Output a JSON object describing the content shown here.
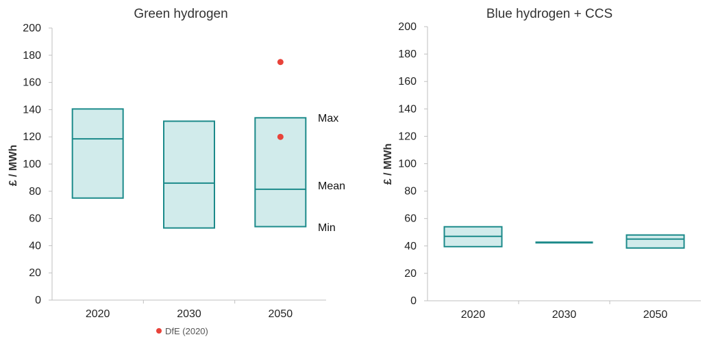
{
  "colors": {
    "box_fill": "#d1ebeb",
    "box_stroke": "#1b8a8a",
    "marker": "#e8433a",
    "axis": "#bfbfbf",
    "text": "#222222"
  },
  "chart_data": [
    {
      "type": "box",
      "title": "Green hydrogen",
      "xlabel": "",
      "ylabel": "£ / MWh",
      "ylim": [
        0,
        200
      ],
      "yticks": [
        "0",
        "20",
        "40",
        "60",
        "80",
        "100",
        "120",
        "140",
        "160",
        "180",
        "200"
      ],
      "categories": [
        "2020",
        "2030",
        "2050"
      ],
      "series": [
        {
          "stat": "max",
          "values": [
            140.5,
            131.5,
            134
          ]
        },
        {
          "stat": "mean",
          "values": [
            118.5,
            86,
            81.5
          ]
        },
        {
          "stat": "min",
          "values": [
            75,
            53,
            54
          ]
        }
      ],
      "points": [
        {
          "category": "2050",
          "value": 175
        },
        {
          "category": "2050",
          "value": 120
        }
      ],
      "annotations": [
        "Max",
        "Mean",
        "Min"
      ],
      "legend": {
        "items": [
          {
            "name": "DfE (2020)",
            "marker": "circle"
          }
        ],
        "position": "bottom"
      }
    },
    {
      "type": "box",
      "title": "Blue hydrogen + CCS",
      "xlabel": "",
      "ylabel": "£ / MWh",
      "ylim": [
        0,
        200
      ],
      "yticks": [
        "0",
        "20",
        "40",
        "60",
        "80",
        "100",
        "120",
        "140",
        "160",
        "180",
        "200"
      ],
      "categories": [
        "2020",
        "2030",
        "2050"
      ],
      "series": [
        {
          "stat": "max",
          "values": [
            54,
            42.5,
            48
          ]
        },
        {
          "stat": "mean",
          "values": [
            47,
            42.5,
            45
          ]
        },
        {
          "stat": "min",
          "values": [
            39.5,
            42.5,
            38.5
          ]
        }
      ]
    }
  ]
}
